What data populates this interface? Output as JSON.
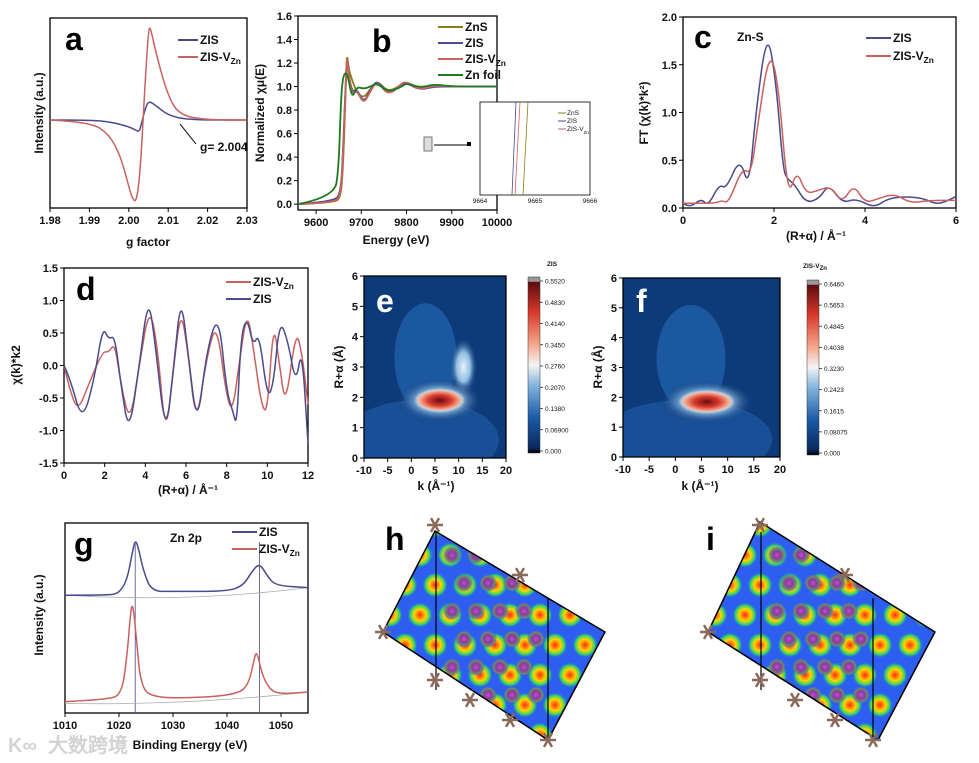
{
  "figure": {
    "panel_labels": {
      "h": "h",
      "i": "i"
    },
    "watermark": "大数跨境",
    "watermark_logo": "K∞"
  },
  "chart_data": [
    {
      "id": "a",
      "panel_label": "a",
      "type": "line",
      "xlabel": "g factor",
      "ylabel": "Intensity (a.u.)",
      "xlim": [
        1.98,
        2.03
      ],
      "ylim": [
        -0.95,
        1.1
      ],
      "xticks": [
        "1.98",
        "1.99",
        "2.00",
        "2.01",
        "2.02",
        "2.03"
      ],
      "yticks": [],
      "annotation": "g= 2.004",
      "series": [
        {
          "name": "ZIS",
          "name_sub": "",
          "color": "#4b4a8c",
          "x": [
            1.98,
            1.99,
            1.995,
            1.999,
            2.0015,
            2.0025,
            2.003,
            2.004,
            2.005,
            2.007,
            2.01,
            2.015,
            2.03
          ],
          "y": [
            0,
            0,
            -0.02,
            -0.06,
            -0.1,
            -0.13,
            -0.08,
            0.1,
            0.21,
            0.15,
            0.05,
            0,
            0
          ]
        },
        {
          "name": "ZIS-V",
          "name_sub": "Zn",
          "color": "#c8625f",
          "x": [
            1.98,
            1.99,
            1.995,
            1.998,
            2.0,
            2.001,
            2.002,
            2.003,
            2.004,
            2.005,
            2.0055,
            2.007,
            2.01,
            2.013,
            2.02,
            2.03
          ],
          "y": [
            0,
            -0.02,
            -0.15,
            -0.4,
            -0.72,
            -0.86,
            -0.88,
            -0.5,
            0.3,
            0.98,
            1.0,
            0.7,
            0.25,
            0.05,
            0,
            0
          ]
        }
      ]
    },
    {
      "id": "b",
      "panel_label": "b",
      "type": "line",
      "xlabel": "Energy (eV)",
      "ylabel": "Normalized χμ(E)",
      "xlim": [
        9560,
        10000
      ],
      "ylim": [
        -0.05,
        1.6
      ],
      "xticks": [
        "9600",
        "9700",
        "9800",
        "9900",
        "10000"
      ],
      "yticks": [
        "0.0",
        "0.2",
        "0.4",
        "0.6",
        "0.8",
        "1.0",
        "1.2",
        "1.4",
        "1.6"
      ],
      "series": [
        {
          "name": "ZnS",
          "name_sub": "",
          "color": "#8a7d1a",
          "x": [
            9560,
            9640,
            9655,
            9660,
            9665,
            9668,
            9672,
            9680,
            9690,
            9705,
            9720,
            9735,
            9760,
            9790,
            9800,
            9830,
            9860,
            9900,
            10000
          ],
          "y": [
            0,
            0.01,
            0.06,
            0.35,
            0.9,
            1.3,
            1.15,
            1.05,
            0.95,
            0.9,
            0.98,
            1.05,
            0.95,
            1.02,
            1.04,
            0.98,
            1.01,
            1.0,
            1.0
          ]
        },
        {
          "name": "ZIS",
          "name_sub": "",
          "color": "#4b4a8c",
          "x": [
            9560,
            9640,
            9655,
            9660,
            9665,
            9668,
            9672,
            9680,
            9690,
            9705,
            9720,
            9735,
            9760,
            9790,
            9800,
            9830,
            9860,
            9900,
            10000
          ],
          "y": [
            0,
            0.02,
            0.1,
            0.5,
            1.0,
            1.25,
            1.1,
            0.95,
            0.98,
            0.86,
            0.97,
            1.06,
            0.93,
            1.02,
            1.03,
            0.97,
            1.0,
            1.0,
            1.0
          ]
        },
        {
          "name": "ZIS-V",
          "name_sub": "Zn",
          "color": "#c8625f",
          "x": [
            9560,
            9640,
            9655,
            9660,
            9665,
            9668,
            9672,
            9680,
            9690,
            9705,
            9720,
            9735,
            9760,
            9790,
            9800,
            9830,
            9860,
            9900,
            10000
          ],
          "y": [
            0,
            0.01,
            0.08,
            0.45,
            0.95,
            1.28,
            1.1,
            0.93,
            0.97,
            0.85,
            0.96,
            1.05,
            0.92,
            1.03,
            1.04,
            0.97,
            1.01,
            1.0,
            1.0
          ]
        },
        {
          "name": "Zn foil",
          "name_sub": "",
          "color": "#1e7a1e",
          "x": [
            9560,
            9640,
            9650,
            9655,
            9660,
            9668,
            9672,
            9680,
            9690,
            9705,
            9720,
            9735,
            9760,
            9790,
            9800,
            9830,
            9860,
            9900,
            10000
          ],
          "y": [
            0,
            0.06,
            0.3,
            0.9,
            1.1,
            1.12,
            1.05,
            0.9,
            1.0,
            0.98,
            1.0,
            1.03,
            0.95,
            1.0,
            1.03,
            0.99,
            1.02,
            1.0,
            1.0
          ]
        }
      ],
      "inset": {
        "xticks": [
          "9664",
          "9665",
          "9666"
        ],
        "series": [
          {
            "name": "ZnS",
            "name_sub": "",
            "color": "#8a7d1a"
          },
          {
            "name": "ZIS",
            "name_sub": "",
            "color": "#4b4a8c"
          },
          {
            "name": "ZIS-V",
            "name_sub": "Zn",
            "color": "#c8625f"
          }
        ]
      }
    },
    {
      "id": "c",
      "panel_label": "c",
      "type": "line",
      "xlabel": "(R+α) / Å⁻¹",
      "ylabel": "FT (χ(k)*k²)",
      "xlim": [
        0,
        6
      ],
      "ylim": [
        0,
        2.0
      ],
      "xticks": [
        "0",
        "2",
        "4",
        "6"
      ],
      "yticks": [
        "0.0",
        "0.5",
        "1.0",
        "1.5",
        "2.0"
      ],
      "annotation": "Zn-S",
      "series": [
        {
          "name": "ZIS",
          "name_sub": "",
          "color": "#4b4a8c",
          "x": [
            0,
            0.15,
            0.4,
            0.55,
            0.8,
            0.95,
            1.25,
            1.45,
            1.6,
            1.85,
            2.05,
            2.2,
            2.3,
            2.45,
            2.7,
            3.0,
            3.2,
            3.5,
            3.8,
            4.2,
            4.5,
            4.9,
            5.3,
            5.6,
            6
          ],
          "y": [
            0.05,
            0.0,
            0.1,
            0.02,
            0.25,
            0.2,
            0.53,
            0.2,
            1.0,
            1.88,
            1.3,
            0.4,
            0.3,
            0.25,
            0.05,
            0.1,
            0.25,
            0.05,
            0.1,
            0.0,
            0.1,
            0.12,
            0.1,
            0.03,
            0.12
          ]
        },
        {
          "name": "ZIS-V",
          "name_sub": "Zn",
          "color": "#c8625f",
          "x": [
            0,
            0.3,
            0.7,
            0.85,
            1.0,
            1.3,
            1.5,
            1.65,
            1.9,
            2.1,
            2.3,
            2.5,
            2.7,
            2.95,
            3.25,
            3.5,
            3.75,
            4.0,
            4.3,
            4.65,
            5.0,
            5.4,
            6
          ],
          "y": [
            0.05,
            0.05,
            0.05,
            0.08,
            0.05,
            0.42,
            0.35,
            0.9,
            1.66,
            1.3,
            0.1,
            0.4,
            0.15,
            0.18,
            0.23,
            0.05,
            0.25,
            0.05,
            0.1,
            0.15,
            0.05,
            0.08,
            0.08
          ]
        }
      ]
    },
    {
      "id": "d",
      "panel_label": "d",
      "type": "line",
      "xlabel": "(R+α) / Å⁻¹",
      "ylabel": "χ(k)*k2",
      "xlim": [
        0,
        12
      ],
      "ylim": [
        -1.5,
        1.5
      ],
      "xticks": [
        "0",
        "2",
        "4",
        "6",
        "8",
        "10",
        "12"
      ],
      "yticks": [
        "-1.5",
        "-1.0",
        "-0.5",
        "0.0",
        "0.5",
        "1.0",
        "1.5"
      ],
      "series": [
        {
          "name": "ZIS-V",
          "name_sub": "Zn",
          "color": "#c8625f",
          "x": [
            0,
            0.3,
            0.7,
            1.2,
            1.9,
            2.2,
            2.5,
            2.8,
            3.25,
            3.7,
            4.2,
            4.6,
            5.0,
            5.4,
            5.75,
            6.1,
            6.5,
            7.0,
            7.5,
            8.0,
            8.3,
            8.6,
            9.0,
            9.3,
            9.7,
            10.0,
            10.3,
            10.6,
            10.9,
            11.4,
            11.7,
            12
          ],
          "y": [
            0,
            -0.4,
            -0.7,
            -0.3,
            0.22,
            0.2,
            0.35,
            -0.3,
            -0.9,
            0,
            0.92,
            0.3,
            -1.15,
            0,
            0.88,
            0.2,
            -0.95,
            0.1,
            0.7,
            -0.5,
            -0.7,
            0.0,
            0.85,
            0.3,
            -0.6,
            -0.75,
            0.7,
            0.0,
            -0.65,
            0.55,
            0.2,
            -0.6
          ]
        },
        {
          "name": "ZIS",
          "name_sub": "",
          "color": "#4b4a8c",
          "x": [
            0,
            0.3,
            0.9,
            1.5,
            1.9,
            2.2,
            2.5,
            2.8,
            3.2,
            3.7,
            4.15,
            4.5,
            5.0,
            5.4,
            5.75,
            6.1,
            6.55,
            7.0,
            7.6,
            8.0,
            8.3,
            8.5,
            8.7,
            9.0,
            9.3,
            9.6,
            10.0,
            10.3,
            10.6,
            11.0,
            11.4,
            11.7,
            12
          ],
          "y": [
            0,
            -0.2,
            -0.88,
            -0.2,
            0.6,
            0.4,
            0.46,
            -0.3,
            -1.07,
            0,
            1.08,
            0.3,
            -1.12,
            0.0,
            1.08,
            0.2,
            -0.98,
            0.2,
            0.83,
            -0.4,
            -0.7,
            -0.95,
            0.45,
            0.75,
            0.3,
            0.5,
            -0.5,
            -0.3,
            0.7,
            0.4,
            -0.3,
            0.3,
            -1.2
          ]
        }
      ]
    },
    {
      "id": "e",
      "panel_label": "e",
      "type": "heatmap",
      "xlabel": "k (Å⁻¹)",
      "ylabel": "R+α (Å)",
      "xlim": [
        -10,
        20
      ],
      "ylim": [
        0,
        6
      ],
      "xticks": [
        "-10",
        "-5",
        "0",
        "5",
        "10",
        "15",
        "20"
      ],
      "yticks": [
        "0",
        "1",
        "2",
        "3",
        "4",
        "5",
        "6"
      ],
      "colorbar_title": "ZIS",
      "colorbar_ticks": [
        "0.000",
        "0.06900",
        "0.1380",
        "0.2070",
        "0.2760",
        "0.3450",
        "0.4140",
        "0.4830",
        "0.5520"
      ],
      "max_location": {
        "k": 6,
        "R": 1.9
      }
    },
    {
      "id": "f",
      "panel_label": "f",
      "type": "heatmap",
      "xlabel": "k (Å⁻¹)",
      "ylabel": "R+α (Å)",
      "xlim": [
        -10,
        20
      ],
      "ylim": [
        0,
        6
      ],
      "xticks": [
        "-10",
        "-5",
        "0",
        "5",
        "10",
        "15",
        "20"
      ],
      "yticks": [
        "0",
        "1",
        "2",
        "3",
        "4",
        "5",
        "6"
      ],
      "colorbar_title": "ZIS-V",
      "colorbar_title_sub": "Zn",
      "colorbar_ticks": [
        "0.000",
        "0.08075",
        "0.1615",
        "0.2423",
        "0.3230",
        "0.4038",
        "0.4845",
        "0.5653",
        "0.6460"
      ],
      "max_location": {
        "k": 6,
        "R": 1.85
      }
    },
    {
      "id": "g",
      "panel_label": "g",
      "type": "line",
      "xlabel": "Binding Energy (eV)",
      "ylabel": "Intensity (a.u.)",
      "xlim": [
        1010,
        1055
      ],
      "ylim": [
        0,
        1
      ],
      "xticks": [
        "1010",
        "1020",
        "1030",
        "1040",
        "1050"
      ],
      "yticks": [],
      "annotation": "Zn 2p",
      "reference_lines_x": [
        1023,
        1046
      ],
      "series": [
        {
          "name": "ZIS",
          "name_sub": "",
          "color": "#4b4a8c",
          "x": [
            1010,
            1018,
            1020,
            1021.5,
            1022.5,
            1023,
            1023.5,
            1024.5,
            1026,
            1030,
            1040,
            1043,
            1044.5,
            1046,
            1047.5,
            1049,
            1055
          ],
          "y": [
            0.62,
            0.62,
            0.63,
            0.7,
            0.85,
            0.91,
            0.88,
            0.75,
            0.64,
            0.64,
            0.64,
            0.67,
            0.74,
            0.79,
            0.72,
            0.67,
            0.66
          ]
        },
        {
          "name": "ZIS-V",
          "name_sub": "Zn",
          "color": "#c8625f",
          "x": [
            1010,
            1018,
            1020.5,
            1021.5,
            1022.2,
            1022.6,
            1023.2,
            1024,
            1026,
            1035,
            1042,
            1044,
            1045,
            1045.5,
            1046.5,
            1048,
            1050,
            1055
          ],
          "y": [
            0.06,
            0.07,
            0.1,
            0.3,
            0.55,
            0.57,
            0.4,
            0.15,
            0.08,
            0.08,
            0.1,
            0.15,
            0.28,
            0.33,
            0.2,
            0.12,
            0.1,
            0.11
          ]
        }
      ]
    }
  ]
}
